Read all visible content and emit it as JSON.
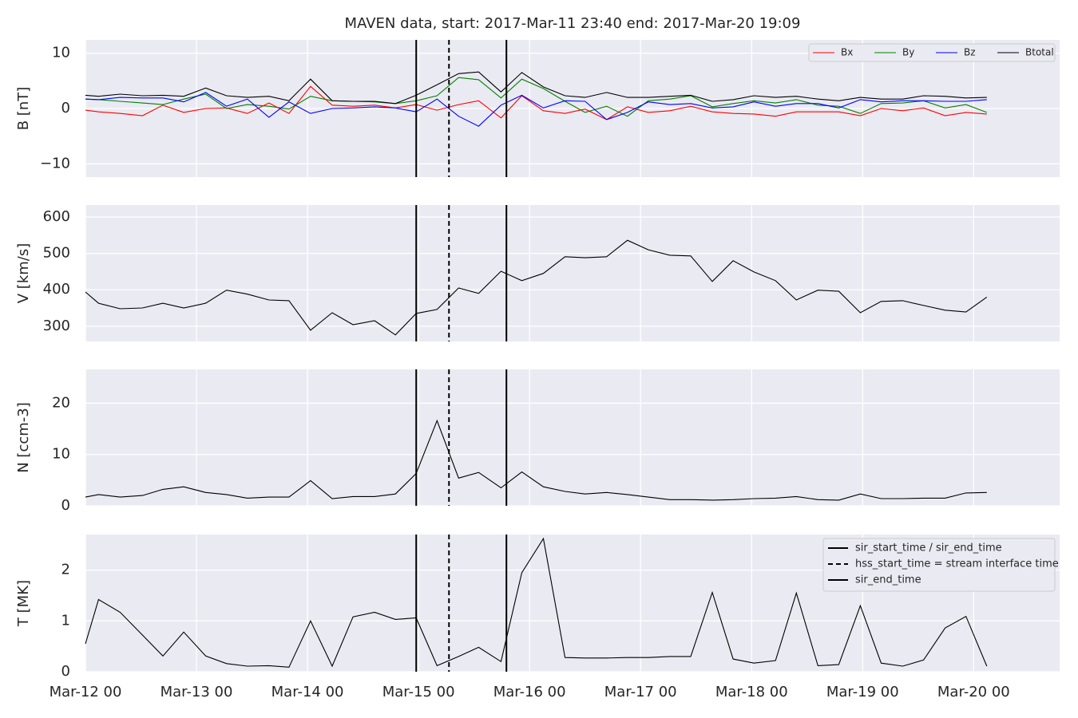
{
  "title": "MAVEN data, start: 2017-Mar-11 23:40  end: 2017-Mar-20 19:09",
  "xlim": [
    "2017-03-12T00:00",
    "2017-03-20T18:35"
  ],
  "xticks": [
    {
      "value": "2017-03-12T00:00",
      "label": "Mar-12 00"
    },
    {
      "value": "2017-03-13T00:00",
      "label": "Mar-13 00"
    },
    {
      "value": "2017-03-14T00:00",
      "label": "Mar-14 00"
    },
    {
      "value": "2017-03-15T00:00",
      "label": "Mar-15 00"
    },
    {
      "value": "2017-03-16T00:00",
      "label": "Mar-16 00"
    },
    {
      "value": "2017-03-17T00:00",
      "label": "Mar-17 00"
    },
    {
      "value": "2017-03-18T00:00",
      "label": "Mar-18 00"
    },
    {
      "value": "2017-03-19T00:00",
      "label": "Mar-19 00"
    },
    {
      "value": "2017-03-20T00:00",
      "label": "Mar-20 00"
    }
  ],
  "grid": true,
  "x": [
    "2017-03-12T00:00",
    "2017-03-12T02:50",
    "2017-03-12T07:30",
    "2017-03-12T12:20",
    "2017-03-12T16:45",
    "2017-03-12T21:15",
    "2017-03-13T02:00",
    "2017-03-13T06:30",
    "2017-03-13T11:00",
    "2017-03-13T15:40",
    "2017-03-13T20:00",
    "2017-03-14T00:40",
    "2017-03-14T05:20",
    "2017-03-14T09:50",
    "2017-03-14T14:30",
    "2017-03-14T19:00",
    "2017-03-14T23:30",
    "2017-03-15T04:00",
    "2017-03-15T08:40",
    "2017-03-15T13:00",
    "2017-03-15T17:50",
    "2017-03-15T22:20",
    "2017-03-16T03:00",
    "2017-03-16T07:40",
    "2017-03-16T12:00",
    "2017-03-16T16:40",
    "2017-03-16T21:10",
    "2017-03-17T01:40",
    "2017-03-17T06:20",
    "2017-03-17T10:50",
    "2017-03-17T15:30",
    "2017-03-17T20:00",
    "2017-03-18T00:30",
    "2017-03-18T05:10",
    "2017-03-18T09:40",
    "2017-03-18T14:20",
    "2017-03-18T18:50",
    "2017-03-18T23:30",
    "2017-03-19T04:00",
    "2017-03-19T08:40",
    "2017-03-19T13:10",
    "2017-03-19T17:50",
    "2017-03-19T22:20",
    "2017-03-20T02:50"
  ],
  "vlines": [
    {
      "x": "2017-03-14T23:30",
      "style": "solid",
      "color": "#000000",
      "name": "sir_start_time / sir_end_time"
    },
    {
      "x": "2017-03-15T06:35",
      "style": "dashed",
      "color": "#000000",
      "name": "hss_start_time = stream interface time"
    },
    {
      "x": "2017-03-15T19:00",
      "style": "solid",
      "color": "#000000",
      "name": "sir_end_time"
    }
  ],
  "vline_legend": "upper right",
  "chart_data": [
    {
      "type": "line",
      "ylabel": "B [nT]",
      "ylim": [
        -12.4,
        12.4
      ],
      "yticks": [
        {
          "value": -10,
          "label": "−10"
        },
        0,
        10
      ],
      "legend": "upper right",
      "series": [
        {
          "name": "Bx",
          "color": "#ff0000",
          "values": [
            -0.3,
            -0.6,
            -0.9,
            -1.3,
            0.6,
            -0.7,
            0,
            0.1,
            -0.9,
            1.0,
            -0.9,
            4.0,
            0.6,
            0.4,
            0.6,
            0.1,
            0.7,
            -0.3,
            0.7,
            1.4,
            -1.7,
            2.3,
            -0.4,
            -0.9,
            -0.1,
            -2.0,
            0.3,
            -0.7,
            -0.4,
            0.4,
            -0.6,
            -0.9,
            -1.0,
            -1.4,
            -0.6,
            -0.6,
            -0.6,
            -1.3,
            0,
            -0.4,
            0.1,
            -1.3,
            -0.7,
            -1.0
          ]
        },
        {
          "name": "By",
          "color": "#008000",
          "values": [
            1.7,
            1.6,
            1.3,
            1.0,
            0.7,
            1.7,
            2.6,
            0,
            0.7,
            0.4,
            -0.1,
            2.2,
            1.4,
            1.3,
            1.2,
            0.9,
            1.4,
            2.3,
            5.6,
            5.2,
            1.9,
            5.3,
            3.6,
            1.3,
            -0.7,
            0.4,
            -1.4,
            1.4,
            1.7,
            2.3,
            0.3,
            0.9,
            1.4,
            1.0,
            1.6,
            0.6,
            0.4,
            -0.9,
            0.9,
            1.0,
            1.4,
            0.1,
            0.7,
            -0.7
          ]
        },
        {
          "name": "Bz",
          "color": "#0000ff",
          "values": [
            1.7,
            1.6,
            2.0,
            1.9,
            1.9,
            1.2,
            2.9,
            0.4,
            1.7,
            -1.6,
            1.2,
            -0.9,
            0,
            0.1,
            0.3,
            0.1,
            -0.6,
            1.7,
            -1.4,
            -3.2,
            0.6,
            2.4,
            0.1,
            1.4,
            1.3,
            -2.0,
            -0.7,
            1.2,
            0.7,
            0.9,
            0.1,
            0.3,
            1.2,
            0.4,
            0.9,
            0.9,
            0.1,
            1.6,
            1.2,
            1.4,
            1.4,
            1.3,
            1.3,
            1.6
          ]
        },
        {
          "name": "Btotal",
          "color": "#000000",
          "values": [
            2.4,
            2.2,
            2.6,
            2.3,
            2.4,
            2.2,
            3.7,
            2.3,
            2.0,
            2.2,
            1.4,
            5.3,
            1.4,
            1.3,
            1.3,
            0.9,
            2.4,
            4.3,
            6.3,
            6.6,
            3.0,
            6.5,
            3.9,
            2.3,
            2.0,
            2.9,
            2.0,
            2.0,
            2.2,
            2.4,
            1.3,
            1.6,
            2.3,
            2.0,
            2.2,
            1.7,
            1.4,
            2.0,
            1.7,
            1.7,
            2.3,
            2.2,
            1.9,
            2.0
          ]
        }
      ]
    },
    {
      "type": "line",
      "ylabel": "V [km/s]",
      "ylim": [
        258,
        633
      ],
      "yticks": [
        300,
        400,
        500,
        600
      ],
      "series": [
        {
          "color": "#000000",
          "values": [
            394,
            363,
            348,
            350,
            363,
            350,
            363,
            399,
            388,
            372,
            370,
            289,
            337,
            304,
            315,
            276,
            335,
            346,
            405,
            390,
            451,
            425,
            445,
            491,
            488,
            491,
            536,
            510,
            495,
            493,
            423,
            480,
            449,
            425,
            372,
            399,
            396,
            337,
            368,
            370,
            357,
            344,
            339,
            380
          ]
        }
      ]
    },
    {
      "type": "line",
      "ylabel": "N [ccm-3]",
      "ylim": [
        0,
        26.6
      ],
      "yticks": [
        0,
        10,
        20
      ],
      "series": [
        {
          "color": "#000000",
          "values": [
            1.7,
            2.2,
            1.7,
            2.0,
            3.2,
            3.7,
            2.6,
            2.2,
            1.5,
            1.7,
            1.7,
            4.9,
            1.4,
            1.8,
            1.8,
            2.3,
            6.3,
            16.6,
            5.4,
            6.5,
            3.5,
            6.6,
            3.7,
            2.8,
            2.3,
            2.6,
            2.2,
            1.7,
            1.2,
            1.2,
            1.1,
            1.2,
            1.4,
            1.5,
            1.8,
            1.2,
            1.1,
            2.3,
            1.4,
            1.4,
            1.5,
            1.5,
            2.5,
            2.6
          ]
        }
      ]
    },
    {
      "type": "line",
      "ylabel": "T [MK]",
      "ylim": [
        0,
        2.7
      ],
      "yticks": [
        0,
        1,
        2
      ],
      "series": [
        {
          "color": "#000000",
          "values": [
            0.55,
            1.42,
            1.17,
            0.72,
            0.31,
            0.78,
            0.31,
            0.16,
            0.11,
            0.12,
            0.09,
            1.0,
            0.11,
            1.08,
            1.17,
            1.03,
            1.06,
            0.12,
            0.3,
            0.48,
            0.2,
            1.95,
            2.62,
            0.28,
            0.27,
            0.27,
            0.28,
            0.28,
            0.3,
            0.3,
            1.56,
            0.25,
            0.17,
            0.22,
            1.55,
            0.12,
            0.14,
            1.3,
            0.17,
            0.11,
            0.23,
            0.86,
            1.09,
            0.11
          ]
        }
      ]
    }
  ]
}
